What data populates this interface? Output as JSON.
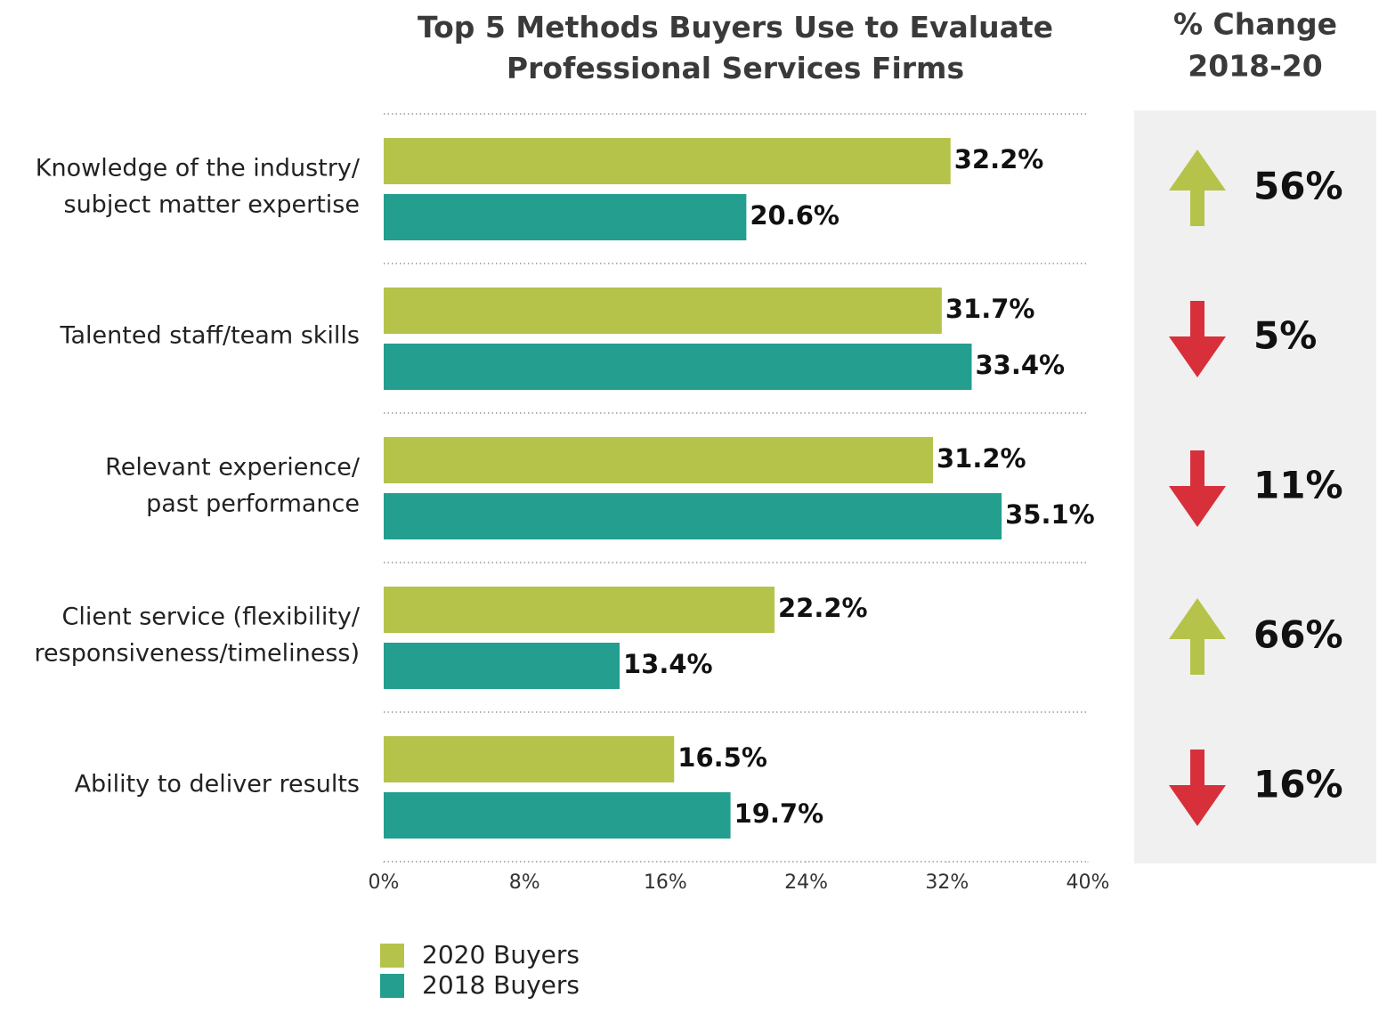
{
  "chart_data": {
    "type": "barh",
    "title": "Top 5 Methods Buyers Use to Evaluate\nProfessional Services Firms",
    "categories": [
      "Knowledge of the industry/\nsubject matter expertise",
      "Talented staff/team skills",
      "Relevant experience/\npast performance",
      "Client service (flexibility/\nresponsiveness/timeliness)",
      "Ability to deliver results"
    ],
    "series": [
      {
        "name": "2020 Buyers",
        "color": "#b5c34b",
        "values": [
          32.2,
          31.7,
          31.2,
          22.2,
          16.5
        ],
        "value_labels": [
          "32.2%",
          "31.7%",
          "31.2%",
          "22.2%",
          "16.5%"
        ]
      },
      {
        "name": "2018 Buyers",
        "color": "#239e8f",
        "values": [
          20.6,
          33.4,
          35.1,
          13.4,
          19.7
        ],
        "value_labels": [
          "20.6%",
          "33.4%",
          "35.1%",
          "13.4%",
          "19.7%"
        ]
      }
    ],
    "xlim": [
      0,
      40
    ],
    "xticks": [
      {
        "value": 0,
        "label": "0%"
      },
      {
        "value": 8,
        "label": "8%"
      },
      {
        "value": 16,
        "label": "16%"
      },
      {
        "value": 24,
        "label": "24%"
      },
      {
        "value": 32,
        "label": "32%"
      },
      {
        "value": 40,
        "label": "40%"
      }
    ],
    "grid": true,
    "change": {
      "title": "% Change\n2018-20",
      "values": [
        56,
        -5,
        -11,
        66,
        -16
      ],
      "value_labels": [
        "56%",
        "5%",
        "11%",
        "66%",
        "16%"
      ],
      "up_color": "#b5c34b",
      "down_color": "#d7303b"
    }
  }
}
